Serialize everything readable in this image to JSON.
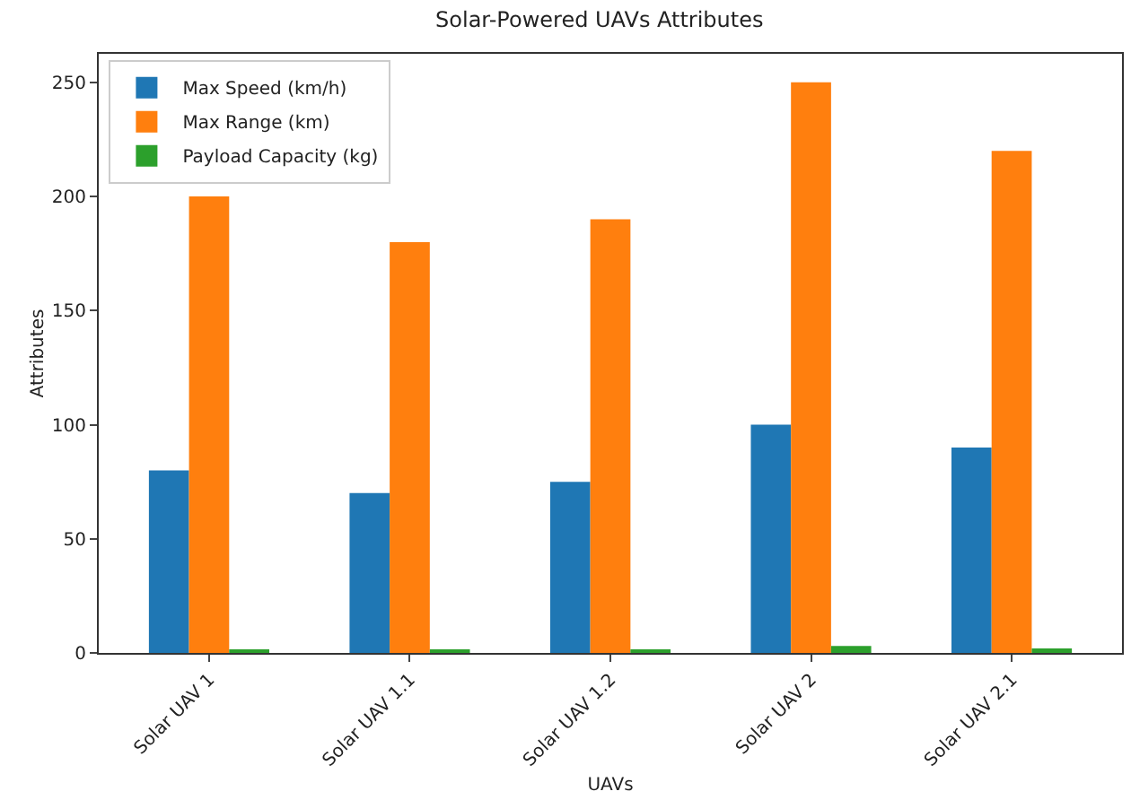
{
  "chart_data": {
    "type": "bar",
    "title": "Solar-Powered UAVs Attributes",
    "xlabel": "UAVs",
    "ylabel": "Attributes",
    "categories": [
      "Solar UAV 1",
      "Solar UAV 1.1",
      "Solar UAV 1.2",
      "Solar UAV 2",
      "Solar UAV 2.1"
    ],
    "series": [
      {
        "name": "Max Speed (km/h)",
        "color": "#1f77b4",
        "values": [
          80,
          70,
          75,
          100,
          90
        ]
      },
      {
        "name": "Max Range (km)",
        "color": "#ff7f0e",
        "values": [
          200,
          180,
          190,
          250,
          220
        ]
      },
      {
        "name": "Payload Capacity (kg)",
        "color": "#2ca02c",
        "values": [
          1.5,
          1,
          1,
          3,
          2
        ]
      }
    ],
    "ylim": [
      0,
      262.5
    ],
    "yticks": [
      0,
      50,
      100,
      150,
      200,
      250
    ],
    "grid": false,
    "legend": "top left"
  }
}
